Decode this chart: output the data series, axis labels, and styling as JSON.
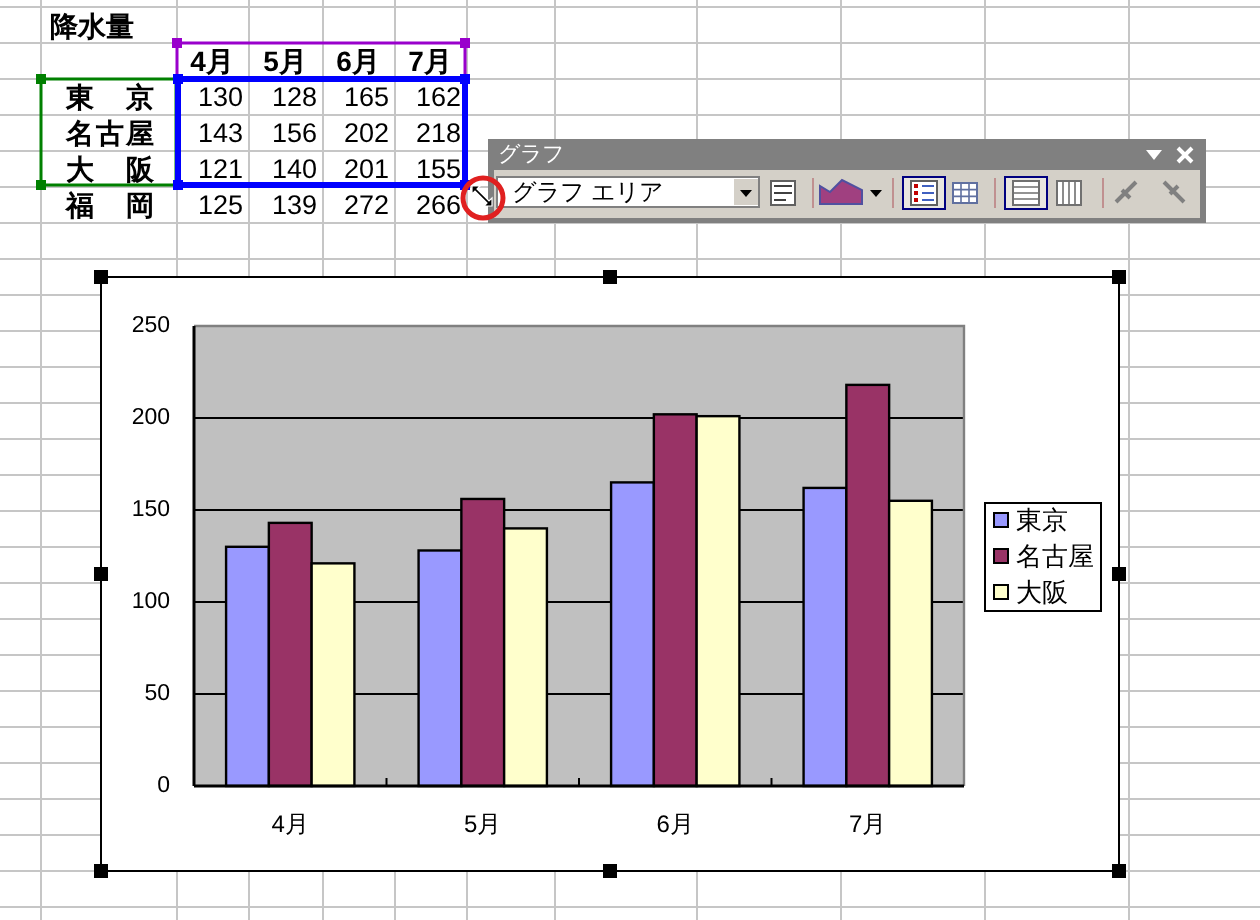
{
  "chart_data": [
    {
      "type": "heatmap",
      "title": "降水量",
      "categories": [
        "4月",
        "5月",
        "6月",
        "7月"
      ],
      "y_categories": [
        "東京",
        "名古屋",
        "大阪",
        "福岡"
      ],
      "cells": [
        [
          130,
          128,
          165,
          162
        ],
        [
          143,
          156,
          202,
          218
        ],
        [
          121,
          140,
          201,
          155
        ],
        [
          125,
          139,
          272,
          266
        ]
      ],
      "data_labels": true
    },
    {
      "type": "other",
      "title": "グラフ",
      "annotations": [
        "グラフ エリア"
      ]
    },
    {
      "type": "bar",
      "categories": [
        "4月",
        "5月",
        "6月",
        "7月"
      ],
      "series": [
        {
          "name": "東京",
          "color": "#9999ff",
          "values": [
            130,
            128,
            165,
            162
          ]
        },
        {
          "name": "名古屋",
          "color": "#993366",
          "values": [
            143,
            156,
            202,
            218
          ]
        },
        {
          "name": "大阪",
          "color": "#ffffcc",
          "values": [
            121,
            140,
            201,
            155
          ]
        }
      ],
      "ylim": [
        0,
        250
      ],
      "yticks": [
        0,
        50,
        100,
        150,
        200,
        250
      ],
      "grid": "y",
      "legend": "right"
    }
  ]
}
